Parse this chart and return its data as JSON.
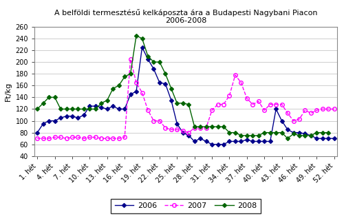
{
  "title": "A belföldi termesztésű kelkáposzta ára a Budapesti Nagybani Piacon\n2006-2008",
  "ylabel": "Ft/kg",
  "ylim": [
    40,
    260
  ],
  "yticks": [
    40,
    60,
    80,
    100,
    120,
    140,
    160,
    180,
    200,
    220,
    240,
    260
  ],
  "x_labels": [
    "1. hét",
    "4. hét",
    "7. hét",
    "10. hét",
    "13. hét",
    "16. hét",
    "19. hét",
    "22. hét",
    "25. hét",
    "28. hét",
    "31. hét",
    "34. hét",
    "37. hét",
    "40. hét",
    "43. hét",
    "46. hét",
    "49. hét",
    "52. hét"
  ],
  "x_ticks_pos": [
    1,
    4,
    7,
    10,
    13,
    16,
    19,
    22,
    25,
    28,
    31,
    34,
    37,
    40,
    43,
    46,
    49,
    52
  ],
  "series_2006": {
    "x": [
      1,
      2,
      3,
      4,
      5,
      6,
      7,
      8,
      9,
      10,
      11,
      12,
      13,
      14,
      15,
      16,
      17,
      18,
      19,
      20,
      21,
      22,
      23,
      24,
      25,
      26,
      27,
      28,
      29,
      30,
      31,
      32,
      33,
      34,
      35,
      36,
      37,
      38,
      39,
      40,
      41,
      42,
      43,
      44,
      45,
      46,
      47,
      48,
      49,
      50,
      51,
      52
    ],
    "y": [
      80,
      95,
      100,
      100,
      105,
      108,
      108,
      105,
      110,
      125,
      125,
      123,
      120,
      125,
      120,
      120,
      145,
      150,
      225,
      205,
      188,
      165,
      163,
      135,
      95,
      80,
      75,
      65,
      70,
      65,
      60,
      60,
      60,
      65,
      65,
      65,
      68,
      65,
      65,
      65,
      65,
      120,
      100,
      85,
      80,
      80,
      78,
      75,
      70,
      70,
      70,
      70
    ],
    "color": "#00008B",
    "marker": "D",
    "markersize": 3,
    "label": "2006",
    "linestyle": "-",
    "linewidth": 1.0
  },
  "series_2007": {
    "x": [
      1,
      2,
      3,
      4,
      5,
      6,
      7,
      8,
      9,
      10,
      11,
      12,
      13,
      14,
      15,
      16,
      17,
      18,
      19,
      20,
      21,
      22,
      23,
      24,
      25,
      26,
      27,
      28,
      29,
      30,
      31,
      32,
      33,
      34,
      35,
      36,
      37,
      38,
      39,
      40,
      41,
      42,
      43,
      44,
      45,
      46,
      47,
      48,
      49,
      50,
      51,
      52
    ],
    "y": [
      70,
      70,
      70,
      72,
      72,
      70,
      72,
      72,
      70,
      72,
      72,
      70,
      70,
      70,
      70,
      72,
      205,
      165,
      148,
      118,
      100,
      100,
      88,
      85,
      85,
      83,
      80,
      88,
      88,
      88,
      118,
      128,
      128,
      143,
      178,
      165,
      138,
      128,
      133,
      118,
      128,
      128,
      128,
      113,
      100,
      103,
      118,
      113,
      118,
      120,
      120,
      120
    ],
    "color": "#FF00FF",
    "marker": "o",
    "markersize": 4,
    "label": "2007",
    "linestyle": "--",
    "linewidth": 1.0,
    "markerfacecolor": "none"
  },
  "series_2008": {
    "x": [
      1,
      2,
      3,
      4,
      5,
      6,
      7,
      8,
      9,
      10,
      11,
      12,
      13,
      14,
      15,
      16,
      17,
      18,
      19,
      20,
      21,
      22,
      23,
      24,
      25,
      26,
      27,
      28,
      29,
      30,
      31,
      32,
      33,
      34,
      35,
      36,
      37,
      38,
      39,
      40,
      41,
      42,
      43,
      44,
      45,
      46,
      47,
      48,
      49,
      50,
      51
    ],
    "y": [
      120,
      130,
      140,
      140,
      120,
      120,
      120,
      120,
      120,
      120,
      120,
      130,
      135,
      155,
      160,
      175,
      180,
      245,
      240,
      210,
      200,
      200,
      180,
      155,
      130,
      130,
      128,
      90,
      90,
      90,
      90,
      90,
      90,
      80,
      80,
      75,
      75,
      75,
      75,
      80,
      80,
      80,
      80,
      70,
      78,
      75,
      75,
      75,
      80,
      80,
      80
    ],
    "color": "#006400",
    "marker": "D",
    "markersize": 3,
    "label": "2008",
    "linestyle": "-",
    "linewidth": 1.0
  },
  "background_color": "#ffffff",
  "grid_color": "#bbbbbb",
  "title_fontsize": 8,
  "axis_label_fontsize": 8,
  "tick_fontsize": 7,
  "legend_fontsize": 8
}
